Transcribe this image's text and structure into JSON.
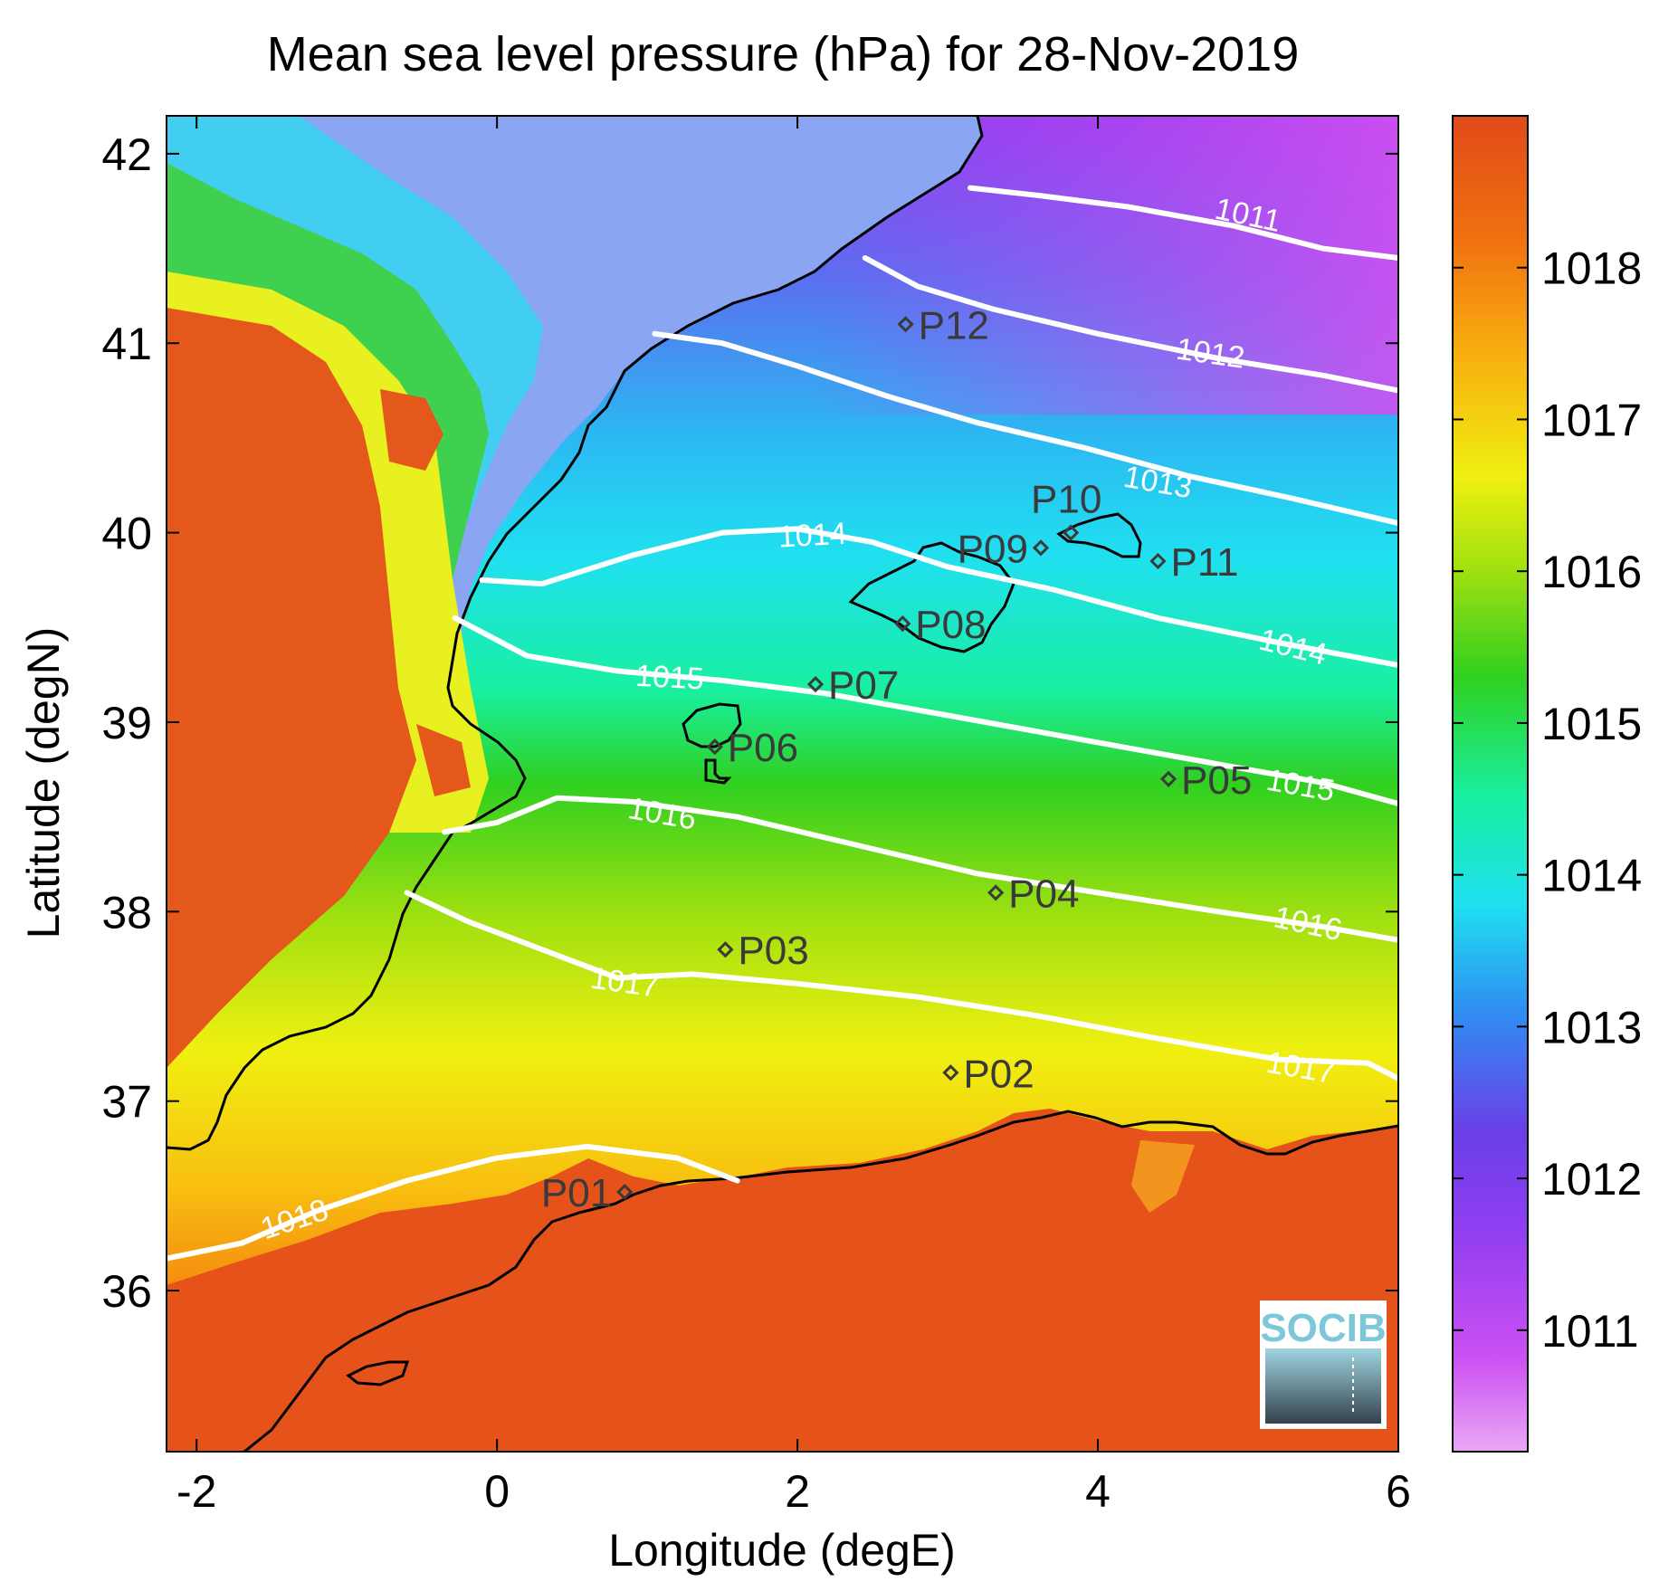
{
  "title": "Mean sea level pressure (hPa) for 28-Nov-2019",
  "map": {
    "xlabel": "Longitude (degE)",
    "ylabel": "Latitude (degN)",
    "xlim": [
      -2.2,
      6
    ],
    "ylim": [
      35.15,
      42.2
    ],
    "xticks": [
      -2,
      0,
      2,
      4,
      6
    ],
    "yticks": [
      36,
      37,
      38,
      39,
      40,
      41,
      42
    ],
    "field_range_hPa": [
      1010.2,
      1019.0
    ]
  },
  "colorbar": {
    "ticks": [
      1011,
      1012,
      1013,
      1014,
      1015,
      1016,
      1017,
      1018
    ],
    "range": [
      1010.2,
      1019.0
    ],
    "colors": [
      "#e9a8f5",
      "#cc50f2",
      "#8e3ef0",
      "#6a3fe8",
      "#2f8ef2",
      "#20e0f0",
      "#18f0a0",
      "#30d020",
      "#a0e010",
      "#f0f010",
      "#f8b010",
      "#f07010",
      "#e04a1a"
    ]
  },
  "contours": [
    {
      "level": "1011",
      "points": [
        [
          3.15,
          41.82
        ],
        [
          3.6,
          41.78
        ],
        [
          4.2,
          41.72
        ],
        [
          4.9,
          41.62
        ],
        [
          5.5,
          41.5
        ],
        [
          6.0,
          41.45
        ]
      ]
    },
    {
      "level": "1012",
      "points": [
        [
          2.45,
          41.45
        ],
        [
          2.8,
          41.3
        ],
        [
          3.3,
          41.18
        ],
        [
          4.0,
          41.05
        ],
        [
          4.8,
          40.92
        ],
        [
          5.5,
          40.83
        ],
        [
          6.0,
          40.75
        ]
      ]
    },
    {
      "level": "1013",
      "points": [
        [
          1.05,
          41.05
        ],
        [
          1.5,
          41.0
        ],
        [
          2.0,
          40.88
        ],
        [
          2.6,
          40.72
        ],
        [
          3.2,
          40.58
        ],
        [
          3.9,
          40.45
        ],
        [
          4.6,
          40.3
        ],
        [
          5.3,
          40.18
        ],
        [
          6.0,
          40.05
        ]
      ]
    },
    {
      "level": "1014",
      "points": [
        [
          -0.1,
          39.75
        ],
        [
          0.3,
          39.73
        ],
        [
          0.9,
          39.88
        ],
        [
          1.5,
          40.0
        ],
        [
          2.0,
          40.02
        ],
        [
          2.5,
          39.95
        ],
        [
          3.0,
          39.82
        ],
        [
          3.7,
          39.7
        ],
        [
          4.4,
          39.55
        ],
        [
          5.2,
          39.42
        ],
        [
          6.0,
          39.3
        ]
      ]
    },
    {
      "level": "1015",
      "points": [
        [
          -0.28,
          39.55
        ],
        [
          0.2,
          39.35
        ],
        [
          0.8,
          39.27
        ],
        [
          1.5,
          39.22
        ],
        [
          2.2,
          39.15
        ],
        [
          2.9,
          39.05
        ],
        [
          3.6,
          38.95
        ],
        [
          4.3,
          38.85
        ],
        [
          5.0,
          38.75
        ],
        [
          5.5,
          38.68
        ],
        [
          6.0,
          38.57
        ]
      ]
    },
    {
      "level": "1016",
      "points": [
        [
          -0.35,
          38.42
        ],
        [
          0.0,
          38.47
        ],
        [
          0.4,
          38.6
        ],
        [
          0.9,
          38.58
        ],
        [
          1.6,
          38.5
        ],
        [
          2.4,
          38.35
        ],
        [
          3.2,
          38.2
        ],
        [
          4.0,
          38.1
        ],
        [
          4.8,
          38.0
        ],
        [
          5.5,
          37.92
        ],
        [
          6.0,
          37.85
        ]
      ]
    },
    {
      "level": "1017",
      "points": [
        [
          -0.6,
          38.1
        ],
        [
          -0.2,
          37.95
        ],
        [
          0.3,
          37.8
        ],
        [
          0.8,
          37.65
        ],
        [
          1.3,
          37.67
        ],
        [
          2.0,
          37.62
        ],
        [
          2.8,
          37.55
        ],
        [
          3.6,
          37.45
        ],
        [
          4.4,
          37.33
        ],
        [
          5.2,
          37.22
        ],
        [
          5.8,
          37.2
        ],
        [
          6.0,
          37.12
        ]
      ]
    },
    {
      "level": "1018",
      "points": [
        [
          -2.2,
          36.17
        ],
        [
          -1.7,
          36.25
        ],
        [
          -1.2,
          36.42
        ],
        [
          -0.6,
          36.58
        ],
        [
          0.0,
          36.7
        ],
        [
          0.6,
          36.76
        ],
        [
          1.2,
          36.7
        ],
        [
          1.6,
          36.58
        ]
      ]
    }
  ],
  "contour_labels": [
    {
      "text": "1011",
      "lon": 5.0,
      "lat": 41.68,
      "rot": 12
    },
    {
      "text": "1012",
      "lon": 4.75,
      "lat": 40.95,
      "rot": 8
    },
    {
      "text": "1013",
      "lon": 4.4,
      "lat": 40.27,
      "rot": 10
    },
    {
      "text": "1014",
      "lon": 2.1,
      "lat": 39.99,
      "rot": -3
    },
    {
      "text": "1014",
      "lon": 5.3,
      "lat": 39.4,
      "rot": 14
    },
    {
      "text": "1015",
      "lon": 1.15,
      "lat": 39.24,
      "rot": 3
    },
    {
      "text": "1015",
      "lon": 5.35,
      "lat": 38.67,
      "rot": 10
    },
    {
      "text": "1016",
      "lon": 1.1,
      "lat": 38.52,
      "rot": 10
    },
    {
      "text": "1016",
      "lon": 5.4,
      "lat": 37.94,
      "rot": 12
    },
    {
      "text": "1017",
      "lon": 0.85,
      "lat": 37.63,
      "rot": 8
    },
    {
      "text": "1017",
      "lon": 5.35,
      "lat": 37.18,
      "rot": 10
    },
    {
      "text": "1018",
      "lon": -1.35,
      "lat": 36.38,
      "rot": -18
    }
  ],
  "points": [
    {
      "label": "P01",
      "lon": 0.85,
      "lat": 36.52,
      "align": "left"
    },
    {
      "label": "P02",
      "lon": 3.02,
      "lat": 37.15,
      "align": "right"
    },
    {
      "label": "P03",
      "lon": 1.52,
      "lat": 37.8,
      "align": "right"
    },
    {
      "label": "P04",
      "lon": 3.32,
      "lat": 38.1,
      "align": "right"
    },
    {
      "label": "P05",
      "lon": 4.47,
      "lat": 38.7,
      "align": "right"
    },
    {
      "label": "P06",
      "lon": 1.45,
      "lat": 38.87,
      "align": "right"
    },
    {
      "label": "P07",
      "lon": 2.12,
      "lat": 39.2,
      "align": "right"
    },
    {
      "label": "P08",
      "lon": 2.7,
      "lat": 39.52,
      "align": "right"
    },
    {
      "label": "P09",
      "lon": 3.62,
      "lat": 39.92,
      "align": "left"
    },
    {
      "label": "P10",
      "lon": 3.82,
      "lat": 40.0,
      "align": "above"
    },
    {
      "label": "P11",
      "lon": 4.4,
      "lat": 39.85,
      "align": "right"
    },
    {
      "label": "P12",
      "lon": 2.72,
      "lat": 41.1,
      "align": "right"
    }
  ],
  "logo": {
    "text": "SOCIB"
  }
}
